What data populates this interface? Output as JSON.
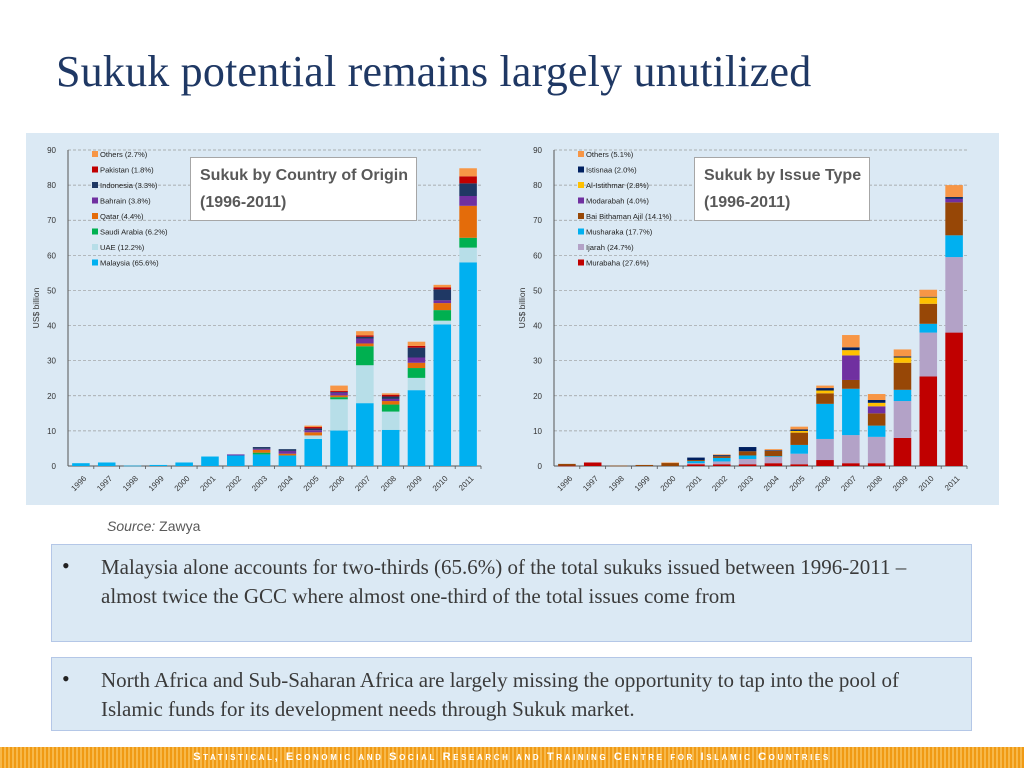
{
  "slide": {
    "title": "Sukuk potential remains largely unutilized",
    "source_label": "Source:",
    "source_value": "Zawya",
    "bullets": [
      "Malaysia alone accounts for two-thirds (65.6%) of the total sukuks issued between 1996-2011 – almost twice the GCC where almost one-third of the total issues come from",
      "North Africa and Sub-Saharan Africa are largely missing the opportunity to tap into the pool of Islamic funds for its development needs through Sukuk market."
    ],
    "bullet_symbol": "•",
    "footer": "Statistical, Economic and Social Research and Training Centre for Islamic Countries"
  },
  "chart_data": [
    {
      "type": "bar",
      "stacked": true,
      "title": "Sukuk by Country of Origin",
      "subtitle": "(1996-2011)",
      "ylabel": "US$ billion",
      "ylim": [
        0,
        90
      ],
      "yticks": [
        0,
        10,
        20,
        30,
        40,
        50,
        60,
        70,
        80,
        90
      ],
      "grid": true,
      "legend_position": "top-left",
      "categories": [
        "1996",
        "1997",
        "1998",
        "1999",
        "2000",
        "2001",
        "2002",
        "2003",
        "2004",
        "2005",
        "2006",
        "2007",
        "2008",
        "2009",
        "2010",
        "2011"
      ],
      "legend_order": [
        "Others (2.7%)",
        "Pakistan (1.8%)",
        "Indonesia (3.3%)",
        "Bahrain (3.8%)",
        "Qatar (4.4%)",
        "Saudi Arabia (6.2%)",
        "UAE (12.2%)",
        "Malaysia (65.6%)"
      ],
      "series": [
        {
          "name": "Malaysia (65.6%)",
          "color": "#00b0f0",
          "values": [
            0.8,
            1.0,
            0.1,
            0.3,
            1.0,
            2.7,
            3.0,
            3.3,
            3.0,
            7.7,
            10.1,
            17.9,
            10.3,
            21.6,
            40.3,
            58.0
          ]
        },
        {
          "name": "UAE (12.2%)",
          "color": "#b7dee8",
          "values": [
            0,
            0,
            0,
            0,
            0,
            0,
            0,
            0,
            0,
            1.0,
            8.9,
            10.8,
            5.2,
            3.5,
            1.1,
            4.2
          ]
        },
        {
          "name": "Saudi Arabia (6.2%)",
          "color": "#00b050",
          "values": [
            0,
            0,
            0,
            0,
            0,
            0,
            0,
            0.5,
            0,
            0,
            0.6,
            5.4,
            2.0,
            2.8,
            3.0,
            2.8
          ]
        },
        {
          "name": "Qatar (4.4%)",
          "color": "#e46c0a",
          "values": [
            0,
            0,
            0,
            0,
            0,
            0,
            0,
            0.8,
            0.5,
            0.9,
            0.5,
            0.8,
            1.0,
            1.5,
            2.0,
            9.1
          ]
        },
        {
          "name": "Bahrain (3.8%)",
          "color": "#7030a0",
          "values": [
            0,
            0,
            0,
            0,
            0,
            0,
            0.3,
            0.3,
            0.8,
            0.6,
            0.8,
            1.4,
            0.6,
            1.5,
            0.8,
            2.8
          ]
        },
        {
          "name": "Indonesia (3.3%)",
          "color": "#1f3864",
          "values": [
            0,
            0,
            0,
            0,
            0,
            0,
            0,
            0.5,
            0.5,
            0.5,
            0.2,
            0.5,
            0.7,
            2.8,
            3.1,
            3.6
          ]
        },
        {
          "name": "Pakistan (1.8%)",
          "color": "#c00000",
          "values": [
            0,
            0,
            0,
            0,
            0,
            0,
            0,
            0,
            0,
            0.4,
            0.3,
            0.4,
            0.5,
            0.5,
            0.6,
            2.0
          ]
        },
        {
          "name": "Others (2.7%)",
          "color": "#f79646",
          "values": [
            0,
            0,
            0,
            0,
            0,
            0,
            0,
            0,
            0,
            0.4,
            1.5,
            1.2,
            0.4,
            1.2,
            0.7,
            2.3
          ]
        }
      ],
      "totals": [
        0.8,
        1.0,
        0.1,
        0.3,
        1.0,
        2.7,
        3.3,
        5.4,
        4.8,
        11.5,
        22.9,
        38.4,
        20.7,
        35.4,
        51.6,
        84.8
      ]
    },
    {
      "type": "bar",
      "stacked": true,
      "title": "Sukuk by Issue Type",
      "subtitle": "(1996-2011)",
      "ylabel": "US$ billion",
      "ylim": [
        0,
        90
      ],
      "yticks": [
        0,
        10,
        20,
        30,
        40,
        50,
        60,
        70,
        80,
        90
      ],
      "grid": true,
      "legend_position": "top-left",
      "categories": [
        "1996",
        "1997",
        "1998",
        "1999",
        "2000",
        "2001",
        "2002",
        "2003",
        "2004",
        "2005",
        "2006",
        "2007",
        "2008",
        "2009",
        "2010",
        "2011"
      ],
      "legend_order": [
        "Others (5.1%)",
        "Istisnaa (2.0%)",
        "Al-Istithmar (2.8%)",
        "Modarabah (4.0%)",
        "Bai Bithaman Ajil (14.1%)",
        "Musharaka (17.7%)",
        "Ijarah (24.7%)",
        "Murabaha (27.6%)"
      ],
      "series": [
        {
          "name": "Murabaha (27.6%)",
          "color": "#c00000",
          "values": [
            0.1,
            1.0,
            0,
            0,
            0,
            0.5,
            0.5,
            0.5,
            0.8,
            0.5,
            1.7,
            0.8,
            0.8,
            8.0,
            25.5,
            38.0
          ]
        },
        {
          "name": "Ijarah (24.7%)",
          "color": "#b3a2c7",
          "values": [
            0,
            0,
            0,
            0,
            0,
            0.3,
            0.8,
            1.5,
            1.8,
            3.0,
            6.0,
            8.0,
            7.5,
            10.5,
            12.5,
            21.5
          ]
        },
        {
          "name": "Musharaka (17.7%)",
          "color": "#00b0f0",
          "values": [
            0,
            0,
            0,
            0,
            0,
            0.6,
            1.0,
            1.0,
            0.2,
            2.5,
            10.0,
            13.2,
            3.2,
            3.2,
            2.5,
            6.2
          ]
        },
        {
          "name": "Bai Bithaman Ajil (14.1%)",
          "color": "#974706",
          "values": [
            0.5,
            0,
            0.1,
            0.3,
            0.9,
            0.3,
            0.5,
            1.2,
            1.5,
            3.5,
            3.0,
            2.5,
            3.5,
            7.7,
            5.7,
            9.4
          ]
        },
        {
          "name": "Modarabah (4.0%)",
          "color": "#7030a0",
          "values": [
            0,
            0,
            0,
            0,
            0,
            0,
            0,
            0,
            0,
            0,
            0,
            7.0,
            2.0,
            0,
            0,
            1.0
          ]
        },
        {
          "name": "Al-Istithmar (2.8%)",
          "color": "#ffc000",
          "values": [
            0,
            0,
            0,
            0,
            0,
            0,
            0,
            0,
            0,
            0.5,
            0.8,
            1.5,
            1.0,
            1.5,
            1.8,
            0
          ]
        },
        {
          "name": "Istisnaa (2.0%)",
          "color": "#002060",
          "values": [
            0,
            0,
            0,
            0,
            0,
            0.7,
            0.3,
            1.2,
            0.2,
            0.4,
            0.7,
            0.8,
            0.8,
            0.3,
            0.2,
            0.5
          ]
        },
        {
          "name": "Others (5.1%)",
          "color": "#f79646",
          "values": [
            0,
            0,
            0,
            0,
            0.1,
            0,
            0.2,
            0,
            0.3,
            0.8,
            0.7,
            3.5,
            1.7,
            2.0,
            2.0,
            3.4
          ]
        }
      ],
      "totals": [
        0.6,
        1.0,
        0.1,
        0.3,
        1.0,
        2.4,
        3.3,
        5.4,
        4.8,
        11.2,
        22.9,
        37.3,
        20.5,
        33.2,
        50.2,
        80.0
      ]
    }
  ]
}
